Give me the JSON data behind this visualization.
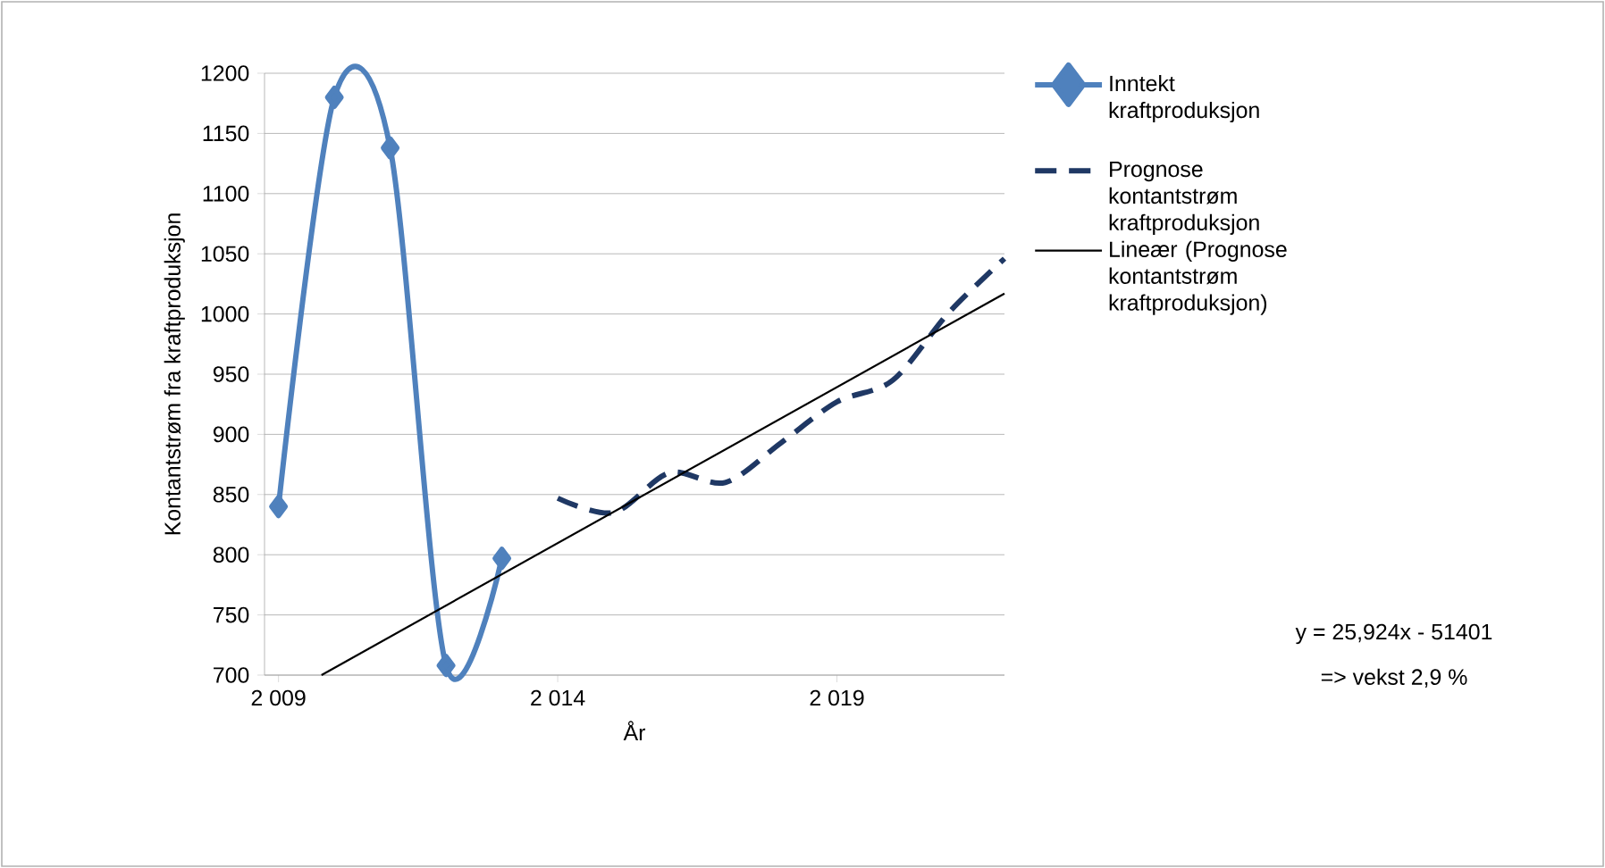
{
  "chart_data": {
    "type": "line",
    "xlabel": "År",
    "ylabel": "Kontantstrøm fra kraftproduksjon",
    "xlim": [
      2008.75,
      2022
    ],
    "xticks": [
      {
        "value": 2009,
        "label": "2 009"
      },
      {
        "value": 2014,
        "label": "2 014"
      },
      {
        "value": 2019,
        "label": "2 019"
      }
    ],
    "ylim": [
      700,
      1200
    ],
    "yticks": [
      700,
      750,
      800,
      850,
      900,
      950,
      1000,
      1050,
      1100,
      1150,
      1200
    ],
    "grid": "y",
    "legend": "right",
    "series": [
      {
        "name": "Inntekt kraftproduksjon",
        "color": "#4f81bd",
        "marker": "diamond",
        "line_style": "solid",
        "x": [
          2009,
          2010,
          2011,
          2012,
          2013
        ],
        "values": [
          840,
          1180,
          1138,
          708,
          797
        ]
      },
      {
        "name": "Prognose kontantstrøm kraftproduksjon",
        "color": "#1f3864",
        "marker": "none",
        "line_style": "dashed",
        "x": [
          2014,
          2015,
          2016,
          2017,
          2018,
          2019,
          2020,
          2021,
          2022
        ],
        "values": [
          847,
          835,
          868,
          860,
          893,
          927,
          945,
          1001,
          1046
        ]
      },
      {
        "name": "Lineær (Prognose kontantstrøm kraftproduksjon)",
        "color": "#000000",
        "marker": "none",
        "line_style": "solid",
        "x": [
          2009.77,
          2022
        ],
        "values": [
          700,
          1017
        ]
      }
    ],
    "annotations": [
      "y = 25,924x - 51401",
      "=> vekst 2,9 %"
    ]
  }
}
